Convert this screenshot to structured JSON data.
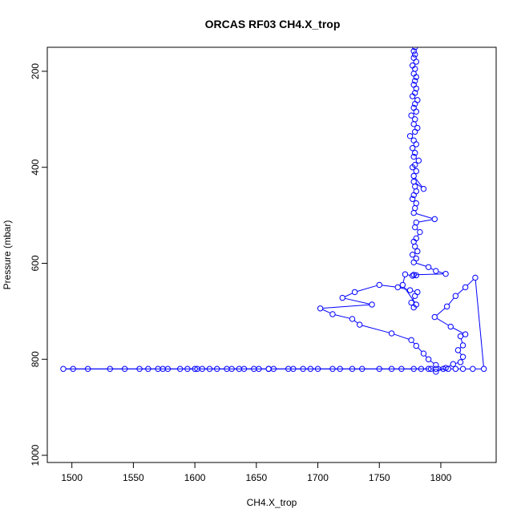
{
  "chart_data": {
    "type": "line",
    "title": "ORCAS RF03 CH4.X_trop",
    "xlabel": "CH4.X_trop",
    "ylabel": "Pressure (mbar)",
    "xlim": [
      1480,
      1845
    ],
    "ylim": [
      1015,
      150
    ],
    "x_ticks": [
      1500,
      1550,
      1600,
      1650,
      1700,
      1750,
      1800
    ],
    "y_ticks": [
      200,
      400,
      600,
      800,
      1000
    ],
    "grid": false,
    "color": "#0000ff",
    "marker": "open-circle",
    "series": [
      {
        "x": [
          1779,
          1778,
          1779,
          1778,
          1780,
          1777,
          1779,
          1778,
          1780,
          1779,
          1778,
          1780,
          1779,
          1777,
          1781,
          1779,
          1778,
          1780,
          1776,
          1779,
          1778,
          1781,
          1779,
          1775,
          1778,
          1780,
          1777,
          1779,
          1778,
          1782,
          1779,
          1777,
          1780,
          1778,
          1786,
          1778,
          1779,
          1780,
          1778,
          1777,
          1780,
          1779,
          1778,
          1795,
          1780,
          1779,
          1783,
          1780,
          1778,
          1779,
          1781,
          1777,
          1780,
          1778,
          1790,
          1796,
          1804,
          1778,
          1780,
          1777,
          1771,
          1769,
          1780,
          1778,
          1776,
          1779,
          1781,
          1775,
          1765,
          1750,
          1730,
          1720,
          1744,
          1702,
          1712,
          1728,
          1734,
          1760,
          1776,
          1780,
          1786,
          1790,
          1796,
          1802,
          1796,
          1804,
          1810,
          1816,
          1818,
          1814,
          1818,
          1816,
          1820,
          1808,
          1795,
          1805,
          1812,
          1820,
          1828,
          1835,
          1826,
          1818,
          1812,
          1806,
          1796,
          1790,
          1784,
          1778,
          1768,
          1750,
          1736,
          1728,
          1718,
          1712,
          1700,
          1694,
          1688,
          1680,
          1676,
          1664,
          1660,
          1652,
          1648,
          1640,
          1636,
          1630,
          1626,
          1618,
          1612,
          1606,
          1600,
          1594,
          1588,
          1578,
          1574,
          1570,
          1562,
          1555,
          1543,
          1531,
          1513,
          1501,
          1493,
          1602,
          1660,
          1760,
          1792
        ],
        "y": [
          150,
          158,
          165,
          172,
          180,
          188,
          195,
          205,
          212,
          220,
          228,
          236,
          245,
          252,
          260,
          268,
          276,
          284,
          292,
          300,
          310,
          318,
          326,
          335,
          344,
          352,
          360,
          370,
          378,
          386,
          395,
          400,
          408,
          418,
          445,
          430,
          440,
          450,
          458,
          466,
          475,
          485,
          495,
          508,
          515,
          525,
          535,
          548,
          555,
          565,
          575,
          582,
          590,
          598,
          608,
          616,
          622,
          624,
          625,
          626,
          623,
          645,
          686,
          692,
          682,
          668,
          660,
          656,
          650,
          645,
          660,
          672,
          686,
          694,
          706,
          716,
          728,
          746,
          760,
          772,
          788,
          800,
          812,
          820,
          826,
          818,
          810,
          806,
          795,
          781,
          771,
          752,
          748,
          732,
          712,
          690,
          668,
          650,
          630,
          820,
          820,
          820,
          820,
          820,
          820,
          820,
          820,
          820,
          820,
          820,
          820,
          820,
          820,
          820,
          820,
          820,
          820,
          820,
          820,
          820,
          820,
          820,
          820,
          820,
          820,
          820,
          820,
          820,
          820,
          820,
          820,
          820,
          820,
          820,
          820,
          820,
          820,
          820,
          820,
          820,
          820,
          820,
          820,
          820,
          820,
          820,
          820
        ]
      }
    ]
  }
}
